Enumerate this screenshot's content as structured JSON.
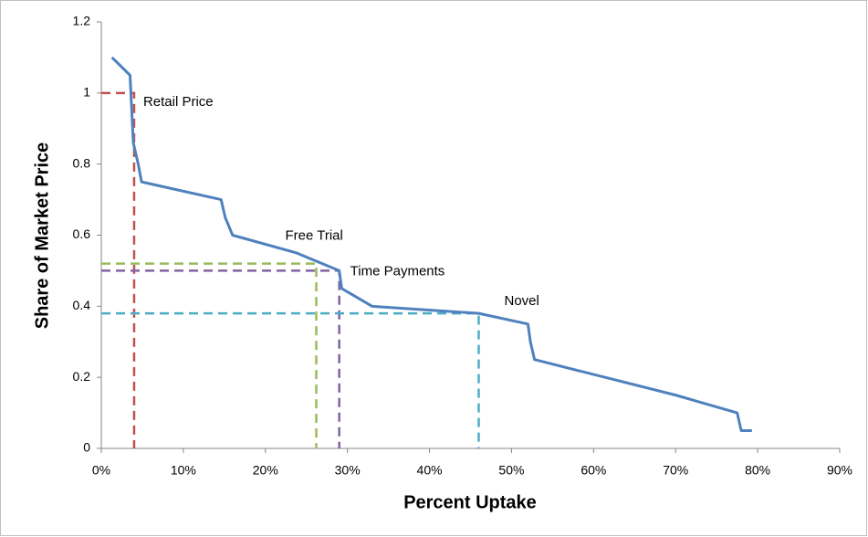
{
  "chart_data": {
    "type": "line",
    "xlabel": "Percent Uptake",
    "ylabel": "Share of Market Price",
    "x": [
      1.3,
      3.5,
      3.9,
      4.5,
      4.9,
      14.6,
      15.1,
      16,
      23.8,
      29,
      29.3,
      33,
      46,
      52,
      52.3,
      52.8,
      70,
      77.5,
      78,
      79.3
    ],
    "series": [
      {
        "name": "Share of Market Price",
        "color": "#4f81bd",
        "values": [
          1.1,
          1.05,
          0.86,
          0.8,
          0.75,
          0.7,
          0.65,
          0.6,
          0.55,
          0.5,
          0.45,
          0.4,
          0.38,
          0.35,
          0.3,
          0.25,
          0.15,
          0.1,
          0.05,
          0.05
        ]
      }
    ],
    "annotations": [
      {
        "text": "Retail Price",
        "x": 4,
        "y": 1.0,
        "color": "#c0504d"
      },
      {
        "text": "Free Trial",
        "x": 26.2,
        "y": 0.52,
        "color": "#9bbb59"
      },
      {
        "text": "Time Payments",
        "x": 29,
        "y": 0.5,
        "color": "#8064a2"
      },
      {
        "text": "Novel",
        "x": 46,
        "y": 0.38,
        "color": "#4bacc6"
      }
    ],
    "xlim": [
      0,
      90
    ],
    "xticks": [
      {
        "value": 0,
        "label": "0%"
      },
      {
        "value": 10,
        "label": "10%"
      },
      {
        "value": 20,
        "label": "20%"
      },
      {
        "value": 30,
        "label": "30%"
      },
      {
        "value": 40,
        "label": "40%"
      },
      {
        "value": 50,
        "label": "50%"
      },
      {
        "value": 60,
        "label": "60%"
      },
      {
        "value": 70,
        "label": "70%"
      },
      {
        "value": 80,
        "label": "80%"
      },
      {
        "value": 90,
        "label": "90%"
      }
    ],
    "ylim": [
      0,
      1.2
    ],
    "yticks": [
      0,
      0.2,
      0.4,
      0.6,
      0.8,
      1,
      1.2
    ],
    "grid": false
  }
}
